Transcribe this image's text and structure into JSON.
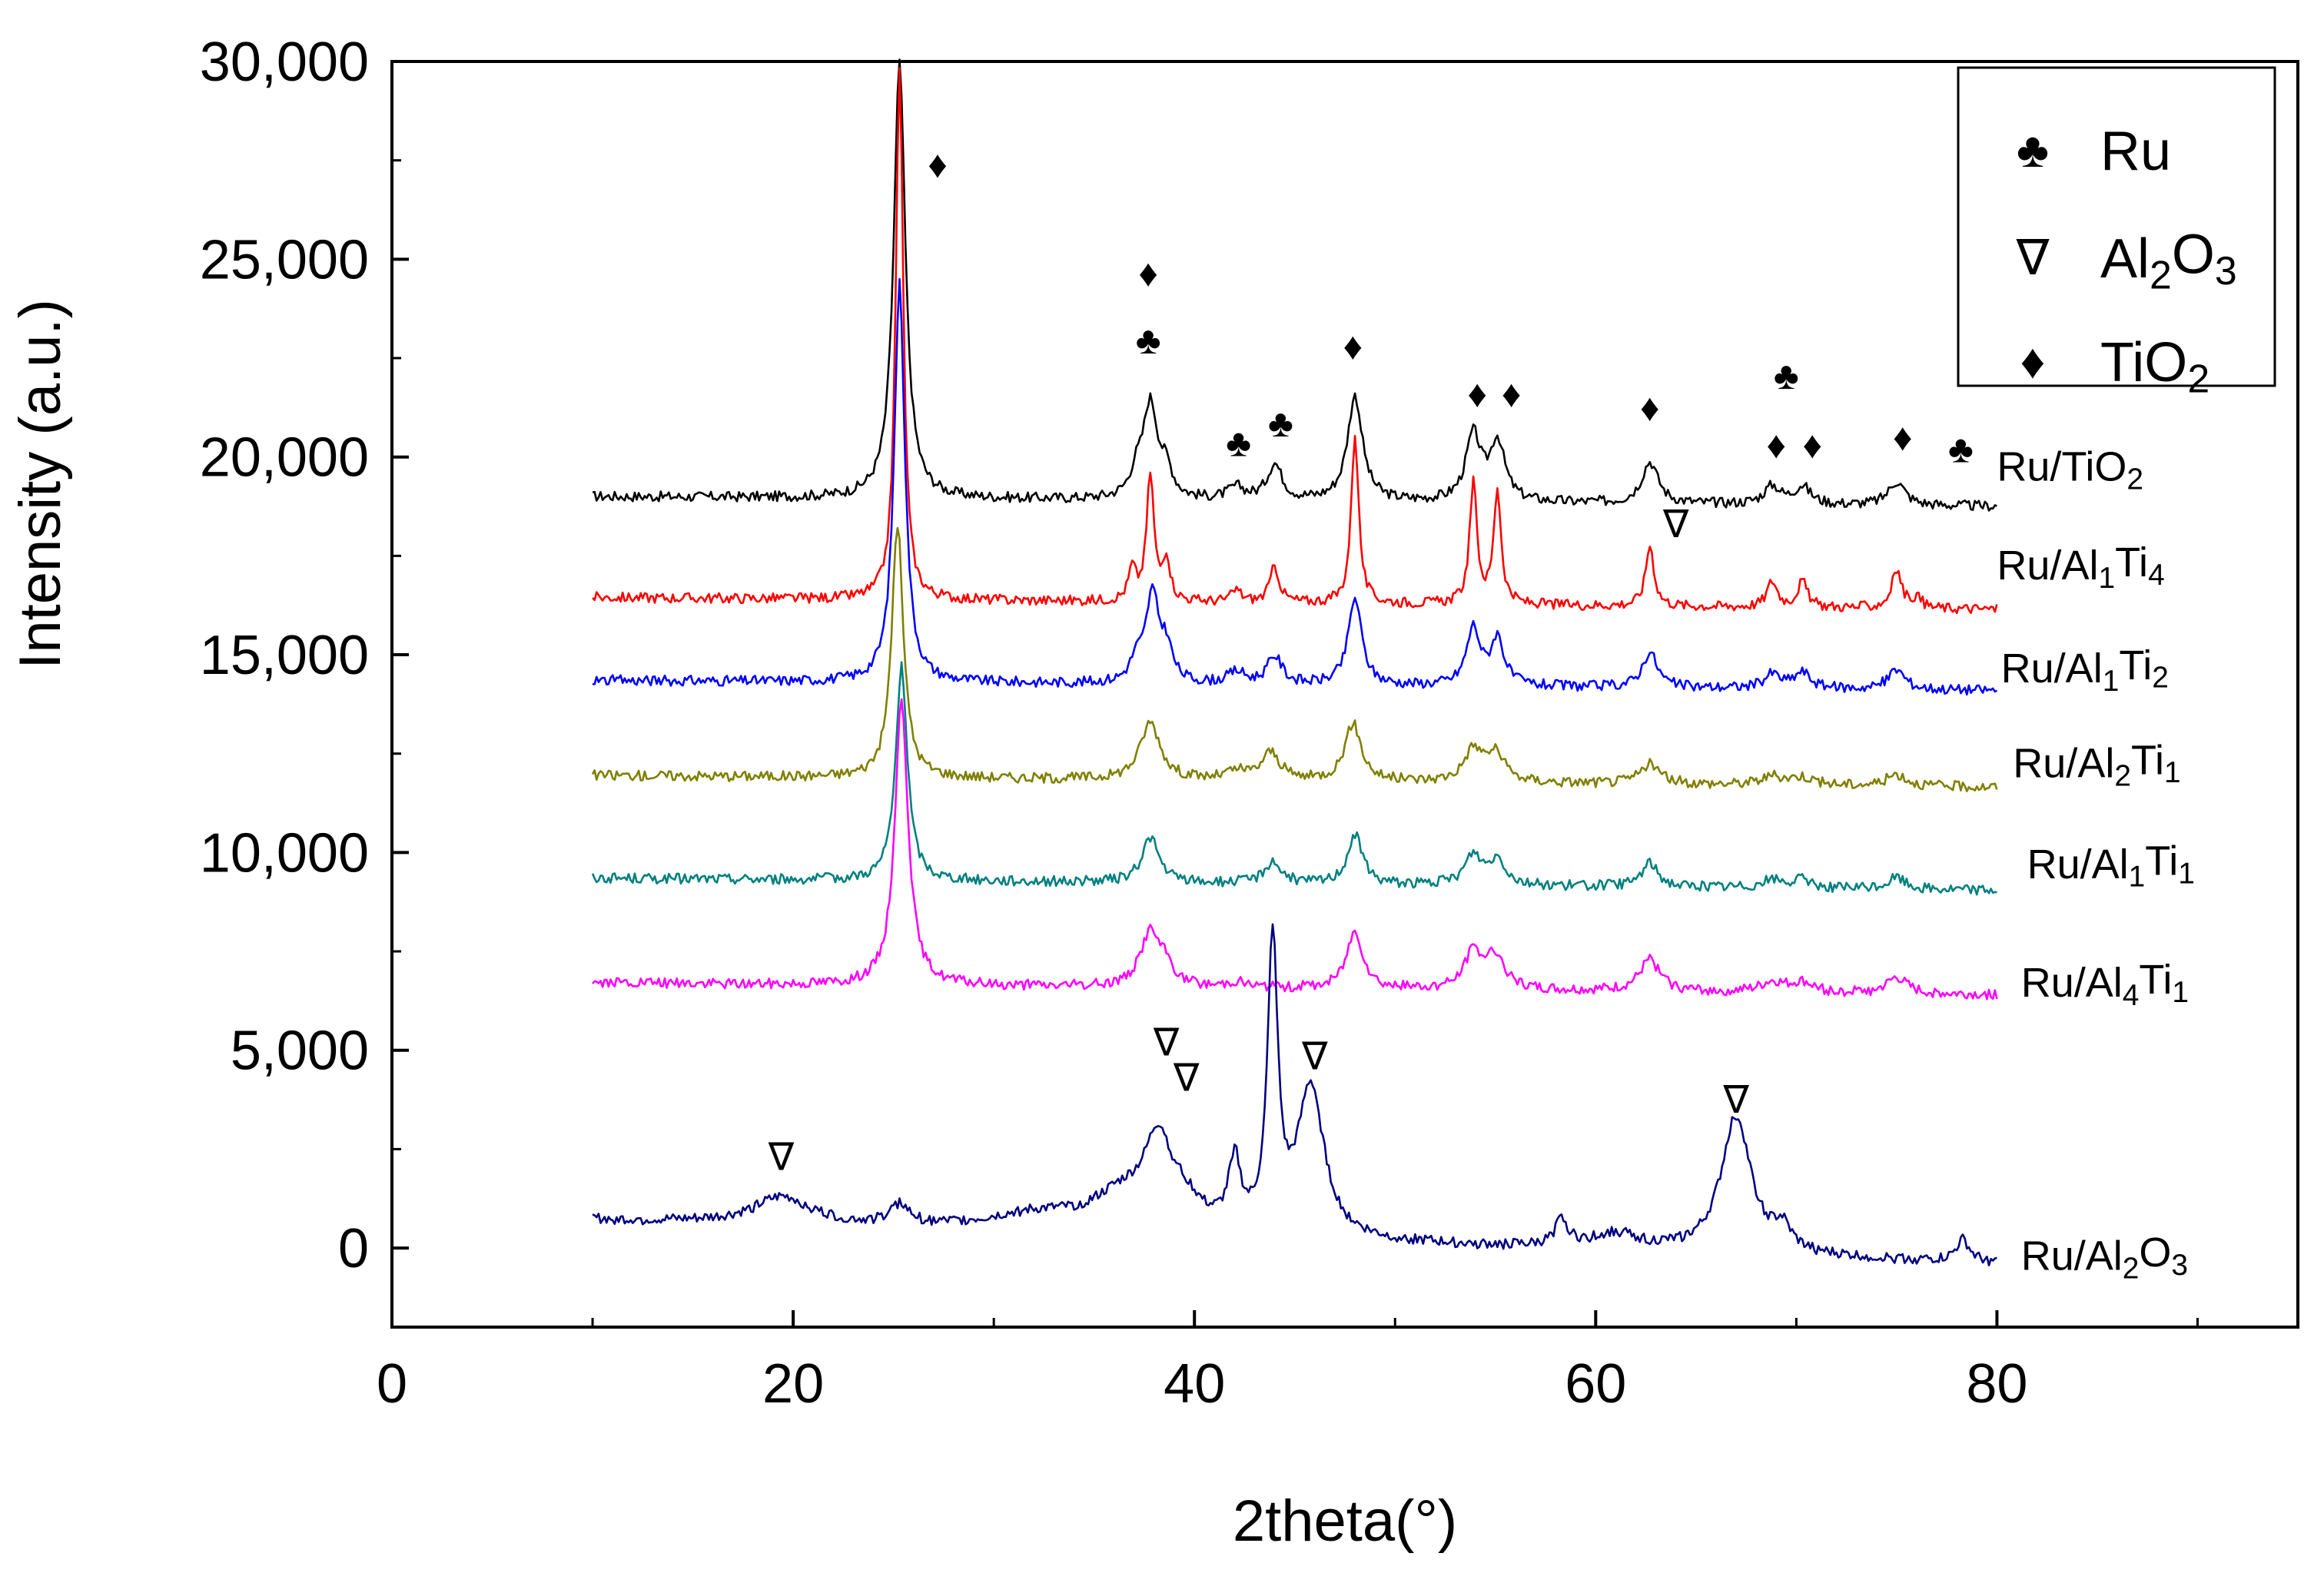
{
  "chart_data": {
    "type": "line",
    "title": "",
    "xlabel": "2theta(°)",
    "ylabel": "Intensity (a.u.)",
    "xlim": [
      0,
      95
    ],
    "ylim": [
      -2000,
      30000
    ],
    "xticks": [
      0,
      20,
      40,
      60,
      80
    ],
    "xtick_labels": [
      "0",
      "20",
      "40",
      "60",
      "80"
    ],
    "yticks": [
      0,
      5000,
      10000,
      15000,
      20000,
      25000,
      30000
    ],
    "ytick_labels": [
      "0",
      "5,000",
      "10,000",
      "15,000",
      "20,000",
      "25,000",
      "30,000"
    ],
    "grid": false,
    "legend_position": "top-right",
    "legend": [
      {
        "symbol": "♣",
        "name": "Ru",
        "label_main": "Ru",
        "label_parts": []
      },
      {
        "symbol": "∇",
        "name": "Al2O3",
        "label_main": "Al",
        "label_parts": [
          {
            "t": "2",
            "sub": true
          },
          {
            "t": "O",
            "sub": false
          },
          {
            "t": "3",
            "sub": true
          }
        ]
      },
      {
        "symbol": "♦",
        "name": "TiO2",
        "label_main": "TiO",
        "label_parts": [
          {
            "t": "2",
            "sub": true
          }
        ]
      }
    ],
    "series": [
      {
        "name": "Ru/TiO2",
        "color": "#000000",
        "baseline": 19000,
        "baseline_end": 18750,
        "label_main": "Ru/TiO",
        "label_parts": [
          {
            "t": "2",
            "sub": true
          }
        ],
        "label_at": [
          80,
          19400
        ],
        "peaks": [
          [
            25.3,
            11000,
            0.35
          ],
          [
            37.1,
            500,
            0.35
          ],
          [
            37.8,
            2400,
            0.45
          ],
          [
            38.6,
            600,
            0.35
          ],
          [
            42.1,
            300,
            0.5
          ],
          [
            44.0,
            900,
            0.45
          ],
          [
            48.0,
            2650,
            0.45
          ],
          [
            53.9,
            1650,
            0.45
          ],
          [
            55.1,
            1500,
            0.45
          ],
          [
            62.7,
            1050,
            0.5
          ],
          [
            68.8,
            450,
            0.5
          ],
          [
            70.3,
            450,
            0.5
          ],
          [
            75.0,
            600,
            0.5
          ]
        ]
      },
      {
        "name": "Ru/Al1Ti4",
        "color": "#ff0000",
        "baseline": 16450,
        "baseline_end": 16150,
        "label_main": "Ru/Al",
        "label_parts": [
          {
            "t": "1",
            "sub": true
          },
          {
            "t": "Ti",
            "sub": false
          },
          {
            "t": "4",
            "sub": true
          }
        ],
        "label_at": [
          80,
          16900
        ],
        "peaks": [
          [
            25.3,
            13500,
            0.22
          ],
          [
            36.9,
            800,
            0.22
          ],
          [
            37.8,
            3200,
            0.22
          ],
          [
            38.6,
            1100,
            0.22
          ],
          [
            42.1,
            300,
            0.3
          ],
          [
            44.0,
            900,
            0.28
          ],
          [
            48.0,
            4300,
            0.22
          ],
          [
            53.9,
            3050,
            0.22
          ],
          [
            55.1,
            2900,
            0.22
          ],
          [
            62.7,
            1550,
            0.25
          ],
          [
            68.8,
            650,
            0.3
          ],
          [
            70.3,
            650,
            0.3
          ],
          [
            75.0,
            950,
            0.3
          ],
          [
            76.0,
            250,
            0.3
          ]
        ]
      },
      {
        "name": "Ru/Al1Ti2",
        "color": "#0000ff",
        "baseline": 14350,
        "baseline_end": 14100,
        "label_main": "Ru/Al",
        "label_parts": [
          {
            "t": "1",
            "sub": true
          },
          {
            "t": "Ti",
            "sub": false
          },
          {
            "t": "2",
            "sub": true
          }
        ],
        "label_at": [
          80.2,
          14300
        ],
        "peaks": [
          [
            25.3,
            10100,
            0.32
          ],
          [
            37.1,
            500,
            0.35
          ],
          [
            37.9,
            2200,
            0.4
          ],
          [
            38.6,
            800,
            0.35
          ],
          [
            42.1,
            300,
            0.5
          ],
          [
            44.0,
            700,
            0.45
          ],
          [
            48.0,
            2200,
            0.4
          ],
          [
            53.9,
            1450,
            0.4
          ],
          [
            55.1,
            1200,
            0.4
          ],
          [
            62.7,
            900,
            0.45
          ],
          [
            68.8,
            350,
            0.5
          ],
          [
            70.3,
            400,
            0.5
          ],
          [
            75.0,
            500,
            0.5
          ]
        ]
      },
      {
        "name": "Ru/Al2Ti1",
        "color": "#808000",
        "baseline": 11950,
        "baseline_end": 11650,
        "label_main": "Ru/Al",
        "label_parts": [
          {
            "t": "2",
            "sub": true
          },
          {
            "t": "Ti",
            "sub": false
          },
          {
            "t": "1",
            "sub": true
          }
        ],
        "label_at": [
          80.8,
          11900
        ],
        "peaks": [
          [
            25.2,
            6400,
            0.35
          ],
          [
            37.8,
            1450,
            0.6
          ],
          [
            42.1,
            200,
            0.6
          ],
          [
            43.8,
            700,
            0.55
          ],
          [
            47.9,
            1450,
            0.5
          ],
          [
            53.9,
            800,
            0.55
          ],
          [
            55.0,
            700,
            0.55
          ],
          [
            62.7,
            500,
            0.6
          ],
          [
            68.8,
            200,
            0.7
          ],
          [
            70.3,
            200,
            0.7
          ],
          [
            75.0,
            300,
            0.6
          ]
        ]
      },
      {
        "name": "Ru/Al1Ti1",
        "color": "#008080",
        "baseline": 9350,
        "baseline_end": 9050,
        "label_main": "Ru/Al",
        "label_parts": [
          {
            "t": "1",
            "sub": true
          },
          {
            "t": "Ti",
            "sub": false
          },
          {
            "t": "1",
            "sub": true
          }
        ],
        "label_at": [
          81.5,
          9350
        ],
        "peaks": [
          [
            25.4,
            5400,
            0.35
          ],
          [
            37.8,
            1150,
            0.5
          ],
          [
            43.9,
            550,
            0.5
          ],
          [
            48.0,
            1250,
            0.45
          ],
          [
            53.9,
            750,
            0.5
          ],
          [
            55.1,
            650,
            0.5
          ],
          [
            62.7,
            600,
            0.5
          ],
          [
            68.8,
            200,
            0.6
          ],
          [
            70.3,
            200,
            0.6
          ],
          [
            75.0,
            300,
            0.5
          ]
        ]
      },
      {
        "name": "Ru/Al4Ti1",
        "color": "#ff00ff",
        "baseline": 6700,
        "baseline_end": 6400,
        "label_main": "Ru/Al",
        "label_parts": [
          {
            "t": "4",
            "sub": true
          },
          {
            "t": "Ti",
            "sub": false
          },
          {
            "t": "1",
            "sub": true
          }
        ],
        "label_at": [
          81.2,
          6350
        ],
        "peaks": [
          [
            25.4,
            7200,
            0.4
          ],
          [
            37.8,
            1400,
            0.6
          ],
          [
            38.6,
            400,
            0.4
          ],
          [
            42.1,
            150,
            0.6
          ],
          [
            48.0,
            1450,
            0.5
          ],
          [
            53.9,
            900,
            0.55
          ],
          [
            55.0,
            850,
            0.55
          ],
          [
            62.7,
            800,
            0.6
          ],
          [
            68.8,
            250,
            0.7
          ],
          [
            70.3,
            250,
            0.7
          ],
          [
            75.0,
            400,
            0.6
          ]
        ]
      },
      {
        "name": "Ru/Al2O3",
        "color": "#000080",
        "baseline": 700,
        "baseline_end": -400,
        "label_main": "Ru/Al",
        "label_parts": [
          {
            "t": "2",
            "sub": true
          },
          {
            "t": "O",
            "sub": false
          },
          {
            "t": "3",
            "sub": true
          }
        ],
        "label_at": [
          81.2,
          -550
        ],
        "peaks": [
          [
            19.5,
            700,
            1.8
          ],
          [
            25.3,
            500,
            0.6
          ],
          [
            32,
            400,
            3.0
          ],
          [
            36.5,
            900,
            2.0
          ],
          [
            38.2,
            2000,
            0.8
          ],
          [
            39.5,
            600,
            1.0
          ],
          [
            42.0,
            1700,
            0.35
          ],
          [
            43.9,
            7300,
            0.3
          ],
          [
            45.8,
            3800,
            0.8
          ],
          [
            58.3,
            650,
            0.4
          ],
          [
            61.0,
            400,
            1.5
          ],
          [
            67.0,
            3500,
            0.9
          ],
          [
            69.3,
            550,
            0.5
          ],
          [
            78.3,
            550,
            0.4
          ]
        ]
      }
    ],
    "phase_markers": [
      {
        "symbol": "♦",
        "phase": "TiO2",
        "x": 27.2,
        "y": 27400
      },
      {
        "symbol": "♦",
        "phase": "TiO2",
        "x": 37.7,
        "y": 24650
      },
      {
        "symbol": "♣",
        "phase": "Ru",
        "x": 37.7,
        "y": 22950
      },
      {
        "symbol": "♣",
        "phase": "Ru",
        "x": 42.2,
        "y": 20350
      },
      {
        "symbol": "♣",
        "phase": "Ru",
        "x": 44.3,
        "y": 20850
      },
      {
        "symbol": "♦",
        "phase": "TiO2",
        "x": 47.9,
        "y": 22800
      },
      {
        "symbol": "♦",
        "phase": "TiO2",
        "x": 54.1,
        "y": 21600
      },
      {
        "symbol": "♦",
        "phase": "TiO2",
        "x": 55.8,
        "y": 21600
      },
      {
        "symbol": "♦",
        "phase": "TiO2",
        "x": 62.7,
        "y": 21250
      },
      {
        "symbol": "♣",
        "phase": "Ru",
        "x": 69.5,
        "y": 22050
      },
      {
        "symbol": "♦",
        "phase": "TiO2",
        "x": 69.0,
        "y": 20300
      },
      {
        "symbol": "♦",
        "phase": "TiO2",
        "x": 70.8,
        "y": 20300
      },
      {
        "symbol": "♦",
        "phase": "TiO2",
        "x": 75.3,
        "y": 20500
      },
      {
        "symbol": "♣",
        "phase": "Ru",
        "x": 78.2,
        "y": 20200
      },
      {
        "symbol": "∇",
        "phase": "Al2O3",
        "x": 64.0,
        "y": 18300
      },
      {
        "symbol": "∇",
        "phase": "Al2O3",
        "x": 19.4,
        "y": 2300
      },
      {
        "symbol": "∇",
        "phase": "Al2O3",
        "x": 38.6,
        "y": 5200
      },
      {
        "symbol": "∇",
        "phase": "Al2O3",
        "x": 39.6,
        "y": 4300
      },
      {
        "symbol": "∇",
        "phase": "Al2O3",
        "x": 46.0,
        "y": 4850
      },
      {
        "symbol": "∇",
        "phase": "Al2O3",
        "x": 67.0,
        "y": 3750
      }
    ]
  }
}
